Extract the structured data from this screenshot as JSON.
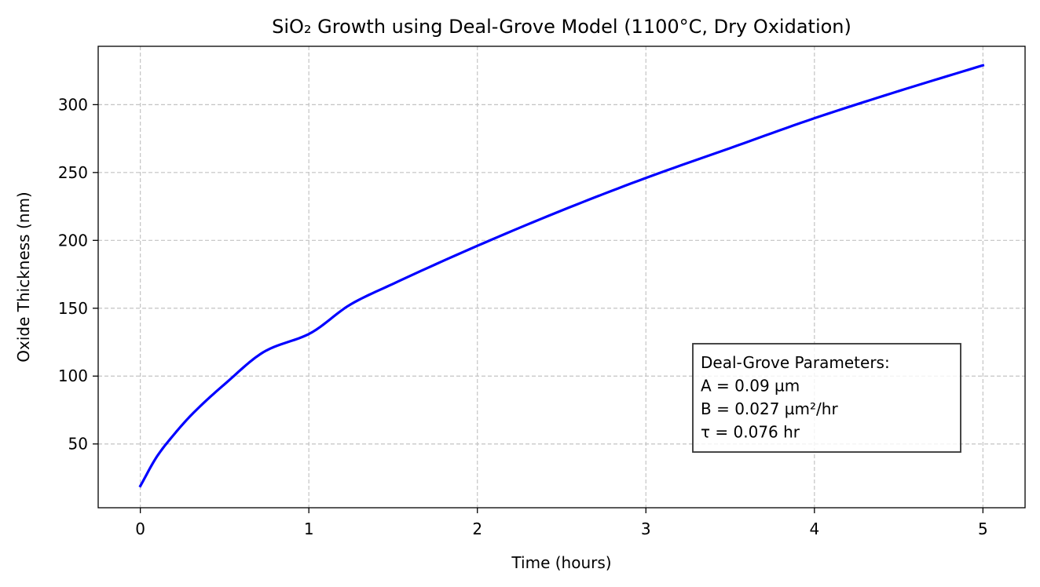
{
  "chart_data": {
    "type": "line",
    "title": "SiO₂ Growth using Deal-Grove Model (1100°C, Dry Oxidation)",
    "xlabel": "Time (hours)",
    "ylabel": "Oxide Thickness (nm)",
    "xlim": [
      -0.25,
      5.25
    ],
    "ylim": [
      3,
      343
    ],
    "xticks": [
      0,
      1,
      2,
      3,
      4,
      5
    ],
    "xtick_labels": [
      "0",
      "1",
      "2",
      "3",
      "4",
      "5"
    ],
    "yticks": [
      50,
      100,
      150,
      200,
      250,
      300
    ],
    "ytick_labels": [
      "50",
      "100",
      "150",
      "200",
      "250",
      "300"
    ],
    "grid": true,
    "series": [
      {
        "color": "#0000ff",
        "x": [
          0,
          0.1,
          0.2,
          0.3,
          0.5,
          0.75,
          1,
          1.25,
          1.5,
          2,
          2.5,
          3,
          3.5,
          4,
          4.5,
          5
        ],
        "y": [
          19,
          41,
          57,
          71,
          94,
          119,
          131,
          153,
          168,
          196,
          222,
          246,
          268,
          290,
          310,
          329
        ]
      }
    ],
    "annotation": {
      "lines": [
        "Deal-Grove Parameters:",
        "A = 0.09 µm",
        "B = 0.027 µm²/hr",
        "τ = 0.076 hr"
      ],
      "position": "lower-right"
    }
  }
}
